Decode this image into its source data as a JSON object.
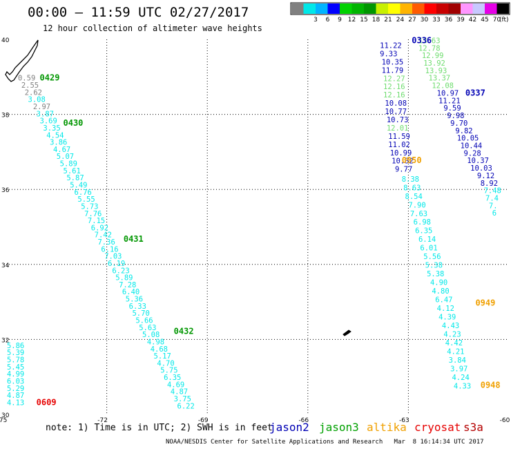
{
  "header": {
    "title": "00:00 — 11:59 UTC 02/27/2017",
    "subtitle": "12 hour collection of altimeter wave heights"
  },
  "legend": {
    "unit": "(ft)",
    "bins": [
      {
        "label": "",
        "color": "#808080"
      },
      {
        "label": "3",
        "color": "#00e8e8"
      },
      {
        "label": "6",
        "color": "#00b4ff"
      },
      {
        "label": "9",
        "color": "#0000ff"
      },
      {
        "label": "12",
        "color": "#00d200"
      },
      {
        "label": "15",
        "color": "#00b400"
      },
      {
        "label": "18",
        "color": "#009600"
      },
      {
        "label": "21",
        "color": "#c8f000"
      },
      {
        "label": "24",
        "color": "#ffff00"
      },
      {
        "label": "27",
        "color": "#ffb400"
      },
      {
        "label": "30",
        "color": "#ff5a00"
      },
      {
        "label": "33",
        "color": "#ff0000"
      },
      {
        "label": "36",
        "color": "#c80000"
      },
      {
        "label": "39",
        "color": "#a00000"
      },
      {
        "label": "42",
        "color": "#ff96ff"
      },
      {
        "label": "45",
        "color": "#c8c8ff"
      },
      {
        "label": "70",
        "color": "#e600e6"
      },
      {
        "label": "",
        "color": "#000000"
      }
    ]
  },
  "axes": {
    "lon_min": -75,
    "lon_max": -60,
    "lat_min": 30,
    "lat_max": 40,
    "lon_ticks": [
      {
        "value": -75,
        "label": "-75"
      },
      {
        "value": -72,
        "label": "-72"
      },
      {
        "value": -69,
        "label": "-69"
      },
      {
        "value": -66,
        "label": "-66"
      },
      {
        "value": -63,
        "label": "-63"
      },
      {
        "value": -60,
        "label": "-60"
      }
    ],
    "lat_ticks": [
      {
        "value": 40,
        "label": "40"
      },
      {
        "value": 38,
        "label": "38"
      },
      {
        "value": 36,
        "label": "36"
      },
      {
        "value": 34,
        "label": "34"
      },
      {
        "value": 32,
        "label": "32"
      },
      {
        "value": 30,
        "label": "30"
      }
    ],
    "grid": "dotted"
  },
  "colors": {
    "gray": "#808080",
    "cyan": "#00e8e8",
    "blue": "#0000b4",
    "green": "#00d200",
    "lightgreen": "#6edc6e",
    "darkgreen": "#009600",
    "orange": "#f0a000",
    "red": "#e60000"
  },
  "chart_data": {
    "type": "scatter",
    "note": "Wave heights (ft) along altimeter passes",
    "series": [
      {
        "name": "pass-1",
        "points": [
          {
            "lon": -74.65,
            "lat": 38.9,
            "v": "0.59",
            "c": "gray"
          },
          {
            "lon": -74.55,
            "lat": 38.71,
            "v": "2.55",
            "c": "gray"
          },
          {
            "lon": -74.45,
            "lat": 38.52,
            "v": "2.62",
            "c": "gray"
          },
          {
            "lon": -74.35,
            "lat": 38.33,
            "v": "3.08",
            "c": "cyan"
          },
          {
            "lon": -74.2,
            "lat": 38.14,
            "v": "2.97",
            "c": "gray"
          },
          {
            "lon": -74.1,
            "lat": 37.95,
            "v": "3.87",
            "c": "cyan"
          },
          {
            "lon": -74.0,
            "lat": 37.76,
            "v": "3.69",
            "c": "cyan"
          },
          {
            "lon": -73.9,
            "lat": 37.57,
            "v": "3.35",
            "c": "cyan"
          },
          {
            "lon": -73.8,
            "lat": 37.38,
            "v": "4.54",
            "c": "cyan"
          },
          {
            "lon": -73.7,
            "lat": 37.19,
            "v": "3.86",
            "c": "cyan"
          },
          {
            "lon": -73.6,
            "lat": 37.0,
            "v": "4.67",
            "c": "cyan"
          },
          {
            "lon": -73.5,
            "lat": 36.81,
            "v": "5.07",
            "c": "cyan"
          },
          {
            "lon": -73.4,
            "lat": 36.62,
            "v": "5.89",
            "c": "cyan"
          },
          {
            "lon": -73.3,
            "lat": 36.43,
            "v": "5.61",
            "c": "cyan"
          },
          {
            "lon": -73.2,
            "lat": 36.24,
            "v": "5.87",
            "c": "cyan"
          },
          {
            "lon": -73.1,
            "lat": 36.05,
            "v": "5.49",
            "c": "cyan"
          },
          {
            "lon": -72.97,
            "lat": 35.86,
            "v": "6.76",
            "c": "cyan"
          },
          {
            "lon": -72.87,
            "lat": 35.67,
            "v": "5.55",
            "c": "cyan"
          },
          {
            "lon": -72.77,
            "lat": 35.48,
            "v": "5.73",
            "c": "cyan"
          },
          {
            "lon": -72.67,
            "lat": 35.29,
            "v": "7.76",
            "c": "cyan"
          },
          {
            "lon": -72.57,
            "lat": 35.1,
            "v": "7.15",
            "c": "cyan"
          },
          {
            "lon": -72.47,
            "lat": 34.91,
            "v": "6.92",
            "c": "cyan"
          },
          {
            "lon": -72.37,
            "lat": 34.72,
            "v": "7.42",
            "c": "cyan"
          },
          {
            "lon": -72.27,
            "lat": 34.53,
            "v": "7.36",
            "c": "cyan"
          },
          {
            "lon": -72.17,
            "lat": 34.34,
            "v": "6.16",
            "c": "cyan"
          },
          {
            "lon": -72.07,
            "lat": 34.15,
            "v": "7.03",
            "c": "cyan"
          },
          {
            "lon": -71.97,
            "lat": 33.96,
            "v": "6.19",
            "c": "cyan"
          },
          {
            "lon": -71.84,
            "lat": 33.77,
            "v": "6.23",
            "c": "cyan"
          },
          {
            "lon": -71.74,
            "lat": 33.58,
            "v": "5.89",
            "c": "cyan"
          },
          {
            "lon": -71.64,
            "lat": 33.39,
            "v": "7.28",
            "c": "cyan"
          },
          {
            "lon": -71.54,
            "lat": 33.2,
            "v": "6.40",
            "c": "cyan"
          },
          {
            "lon": -71.44,
            "lat": 33.01,
            "v": "5.36",
            "c": "cyan"
          },
          {
            "lon": -71.34,
            "lat": 32.82,
            "v": "6.33",
            "c": "cyan"
          },
          {
            "lon": -71.24,
            "lat": 32.63,
            "v": "5.70",
            "c": "cyan"
          },
          {
            "lon": -71.14,
            "lat": 32.44,
            "v": "5.66",
            "c": "cyan"
          },
          {
            "lon": -71.04,
            "lat": 32.25,
            "v": "5.63",
            "c": "cyan"
          },
          {
            "lon": -70.94,
            "lat": 32.06,
            "v": "5.08",
            "c": "cyan"
          },
          {
            "lon": -70.8,
            "lat": 31.87,
            "v": "4.98",
            "c": "cyan"
          },
          {
            "lon": -70.7,
            "lat": 31.68,
            "v": "4.68",
            "c": "cyan"
          },
          {
            "lon": -70.6,
            "lat": 31.49,
            "v": "5.17",
            "c": "cyan"
          },
          {
            "lon": -70.5,
            "lat": 31.3,
            "v": "4.70",
            "c": "cyan"
          },
          {
            "lon": -70.4,
            "lat": 31.11,
            "v": "5.75",
            "c": "cyan"
          },
          {
            "lon": -70.3,
            "lat": 30.92,
            "v": "6.35",
            "c": "cyan"
          },
          {
            "lon": -70.2,
            "lat": 30.73,
            "v": "4.69",
            "c": "cyan"
          },
          {
            "lon": -70.1,
            "lat": 30.54,
            "v": "4.87",
            "c": "cyan"
          },
          {
            "lon": -70.0,
            "lat": 30.35,
            "v": "3.75",
            "c": "cyan"
          },
          {
            "lon": -69.9,
            "lat": 30.16,
            "v": "6.22",
            "c": "cyan"
          }
        ]
      },
      {
        "name": "pass-2",
        "points": [
          {
            "lon": -74.98,
            "lat": 31.77,
            "v": "5.86",
            "c": "cyan"
          },
          {
            "lon": -74.98,
            "lat": 31.58,
            "v": "5.39",
            "c": "cyan"
          },
          {
            "lon": -74.98,
            "lat": 31.39,
            "v": "5.78",
            "c": "cyan"
          },
          {
            "lon": -74.98,
            "lat": 31.2,
            "v": "5.45",
            "c": "cyan"
          },
          {
            "lon": -74.98,
            "lat": 31.01,
            "v": "4.99",
            "c": "cyan"
          },
          {
            "lon": -74.98,
            "lat": 30.82,
            "v": "6.03",
            "c": "cyan"
          },
          {
            "lon": -74.98,
            "lat": 30.63,
            "v": "5.29",
            "c": "cyan"
          },
          {
            "lon": -74.98,
            "lat": 30.44,
            "v": "4.87",
            "c": "cyan"
          },
          {
            "lon": -74.98,
            "lat": 30.25,
            "v": "4.13",
            "c": "cyan"
          }
        ]
      },
      {
        "name": "pass-3",
        "points": [
          {
            "lon": -63.85,
            "lat": 39.77,
            "v": "11.22",
            "c": "blue"
          },
          {
            "lon": -63.85,
            "lat": 39.55,
            "v": "9.33",
            "c": "blue"
          },
          {
            "lon": -63.8,
            "lat": 39.33,
            "v": "10.35",
            "c": "blue"
          },
          {
            "lon": -63.8,
            "lat": 39.11,
            "v": "11.79",
            "c": "blue"
          },
          {
            "lon": -63.75,
            "lat": 38.89,
            "v": "12.27",
            "c": "lightgreen"
          },
          {
            "lon": -63.75,
            "lat": 38.67,
            "v": "12.16",
            "c": "lightgreen"
          },
          {
            "lon": -63.75,
            "lat": 38.45,
            "v": "12.16",
            "c": "lightgreen"
          },
          {
            "lon": -63.7,
            "lat": 38.23,
            "v": "10.08",
            "c": "blue"
          },
          {
            "lon": -63.7,
            "lat": 38.01,
            "v": "10.77",
            "c": "blue"
          },
          {
            "lon": -63.65,
            "lat": 37.79,
            "v": "10.73",
            "c": "blue"
          },
          {
            "lon": -63.65,
            "lat": 37.57,
            "v": "12.01",
            "c": "lightgreen"
          },
          {
            "lon": -63.6,
            "lat": 37.35,
            "v": "11.59",
            "c": "blue"
          },
          {
            "lon": -63.6,
            "lat": 37.13,
            "v": "11.02",
            "c": "blue"
          },
          {
            "lon": -63.55,
            "lat": 36.91,
            "v": "10.99",
            "c": "blue"
          },
          {
            "lon": -63.5,
            "lat": 36.69,
            "v": "10.32",
            "c": "blue"
          },
          {
            "lon": -63.4,
            "lat": 36.47,
            "v": "9.77",
            "c": "blue"
          },
          {
            "lon": -63.2,
            "lat": 36.21,
            "v": "8.38",
            "c": "cyan"
          },
          {
            "lon": -63.15,
            "lat": 35.98,
            "v": "8.63",
            "c": "cyan"
          },
          {
            "lon": -63.1,
            "lat": 35.75,
            "v": "8.54",
            "c": "cyan"
          },
          {
            "lon": -63.0,
            "lat": 35.52,
            "v": "7.90",
            "c": "cyan"
          },
          {
            "lon": -62.95,
            "lat": 35.29,
            "v": "7.63",
            "c": "cyan"
          },
          {
            "lon": -62.85,
            "lat": 35.06,
            "v": "6.98",
            "c": "cyan"
          },
          {
            "lon": -62.8,
            "lat": 34.83,
            "v": "6.35",
            "c": "cyan"
          },
          {
            "lon": -62.7,
            "lat": 34.6,
            "v": "6.14",
            "c": "cyan"
          },
          {
            "lon": -62.65,
            "lat": 34.37,
            "v": "6.01",
            "c": "cyan"
          },
          {
            "lon": -62.55,
            "lat": 34.14,
            "v": "5.56",
            "c": "cyan"
          },
          {
            "lon": -62.5,
            "lat": 33.91,
            "v": "5.38",
            "c": "cyan"
          },
          {
            "lon": -62.45,
            "lat": 33.68,
            "v": "5.38",
            "c": "cyan"
          },
          {
            "lon": -62.35,
            "lat": 33.45,
            "v": "4.90",
            "c": "cyan"
          },
          {
            "lon": -62.3,
            "lat": 33.22,
            "v": "4.80",
            "c": "cyan"
          },
          {
            "lon": -62.2,
            "lat": 32.99,
            "v": "6.47",
            "c": "cyan"
          },
          {
            "lon": -62.15,
            "lat": 32.76,
            "v": "4.12",
            "c": "cyan"
          },
          {
            "lon": -62.1,
            "lat": 32.53,
            "v": "4.39",
            "c": "cyan"
          },
          {
            "lon": -62.0,
            "lat": 32.3,
            "v": "4.43",
            "c": "cyan"
          },
          {
            "lon": -61.95,
            "lat": 32.07,
            "v": "4.23",
            "c": "cyan"
          },
          {
            "lon": -61.9,
            "lat": 31.84,
            "v": "4.42",
            "c": "cyan"
          },
          {
            "lon": -61.85,
            "lat": 31.61,
            "v": "4.21",
            "c": "cyan"
          },
          {
            "lon": -61.8,
            "lat": 31.38,
            "v": "3.84",
            "c": "cyan"
          },
          {
            "lon": -61.75,
            "lat": 31.15,
            "v": "3.97",
            "c": "cyan"
          },
          {
            "lon": -61.7,
            "lat": 30.92,
            "v": "4.24",
            "c": "cyan"
          },
          {
            "lon": -61.65,
            "lat": 30.69,
            "v": "4.33",
            "c": "cyan"
          }
        ]
      },
      {
        "name": "pass-4",
        "points": [
          {
            "lon": -62.7,
            "lat": 39.9,
            "v": "13.63",
            "c": "lightgreen"
          },
          {
            "lon": -62.7,
            "lat": 39.7,
            "v": "12.78",
            "c": "lightgreen"
          },
          {
            "lon": -62.6,
            "lat": 39.5,
            "v": "12.99",
            "c": "lightgreen"
          },
          {
            "lon": -62.55,
            "lat": 39.3,
            "v": "13.92",
            "c": "lightgreen"
          },
          {
            "lon": -62.5,
            "lat": 39.1,
            "v": "13.93",
            "c": "lightgreen"
          },
          {
            "lon": -62.4,
            "lat": 38.9,
            "v": "13.37",
            "c": "lightgreen"
          },
          {
            "lon": -62.3,
            "lat": 38.7,
            "v": "12.08",
            "c": "lightgreen"
          },
          {
            "lon": -62.15,
            "lat": 38.5,
            "v": "10.97",
            "c": "blue"
          },
          {
            "lon": -62.1,
            "lat": 38.3,
            "v": "11.21",
            "c": "blue"
          },
          {
            "lon": -61.95,
            "lat": 38.1,
            "v": "9.59",
            "c": "blue"
          },
          {
            "lon": -61.85,
            "lat": 37.9,
            "v": "9.98",
            "c": "blue"
          },
          {
            "lon": -61.75,
            "lat": 37.7,
            "v": "9.70",
            "c": "blue"
          },
          {
            "lon": -61.6,
            "lat": 37.5,
            "v": "9.82",
            "c": "blue"
          },
          {
            "lon": -61.55,
            "lat": 37.3,
            "v": "10.05",
            "c": "blue"
          },
          {
            "lon": -61.45,
            "lat": 37.1,
            "v": "10.44",
            "c": "blue"
          },
          {
            "lon": -61.35,
            "lat": 36.9,
            "v": "9.28",
            "c": "blue"
          },
          {
            "lon": -61.25,
            "lat": 36.7,
            "v": "10.37",
            "c": "blue"
          },
          {
            "lon": -61.15,
            "lat": 36.5,
            "v": "10.03",
            "c": "blue"
          },
          {
            "lon": -60.95,
            "lat": 36.3,
            "v": "9.12",
            "c": "blue"
          },
          {
            "lon": -60.85,
            "lat": 36.1,
            "v": "8.92",
            "c": "blue"
          },
          {
            "lon": -60.75,
            "lat": 35.9,
            "v": "7.48",
            "c": "cyan"
          },
          {
            "lon": -60.7,
            "lat": 35.7,
            "v": "7.4",
            "c": "cyan"
          },
          {
            "lon": -60.6,
            "lat": 35.5,
            "v": "7.",
            "c": "cyan"
          },
          {
            "lon": -60.5,
            "lat": 35.3,
            "v": "6",
            "c": "cyan"
          }
        ]
      }
    ],
    "times": [
      {
        "lon": -74.0,
        "lat": 38.9,
        "v": "0429",
        "c": "darkgreen"
      },
      {
        "lon": -73.3,
        "lat": 37.7,
        "v": "0430",
        "c": "darkgreen"
      },
      {
        "lon": -71.5,
        "lat": 34.6,
        "v": "0431",
        "c": "darkgreen"
      },
      {
        "lon": -70.0,
        "lat": 32.15,
        "v": "0432",
        "c": "darkgreen"
      },
      {
        "lon": -74.1,
        "lat": 30.25,
        "v": "0609",
        "c": "red"
      },
      {
        "lon": -62.9,
        "lat": 39.9,
        "v": "0336",
        "c": "blue"
      },
      {
        "lon": -61.3,
        "lat": 38.5,
        "v": "0337",
        "c": "blue"
      },
      {
        "lon": -63.2,
        "lat": 36.7,
        "v": "0950",
        "c": "orange"
      },
      {
        "lon": -61.0,
        "lat": 32.9,
        "v": "0949",
        "c": "orange"
      },
      {
        "lon": -60.85,
        "lat": 30.71,
        "v": "0948",
        "c": "orange"
      }
    ]
  },
  "footer": {
    "note": "note: 1) Time is in UTC; 2) SWH is in feet",
    "satellites": [
      {
        "name": "jason2",
        "color": "#0000b4"
      },
      {
        "name": "jason3",
        "color": "#00a000"
      },
      {
        "name": "altika",
        "color": "#f0a000"
      },
      {
        "name": "cryosat",
        "color": "#e60000"
      },
      {
        "name": "s3a",
        "color": "#b40000"
      }
    ],
    "credit": "NOAA/NESDIS Center for Satellite Applications and Research   Mar  8 16:14:34 UTC 2017"
  }
}
